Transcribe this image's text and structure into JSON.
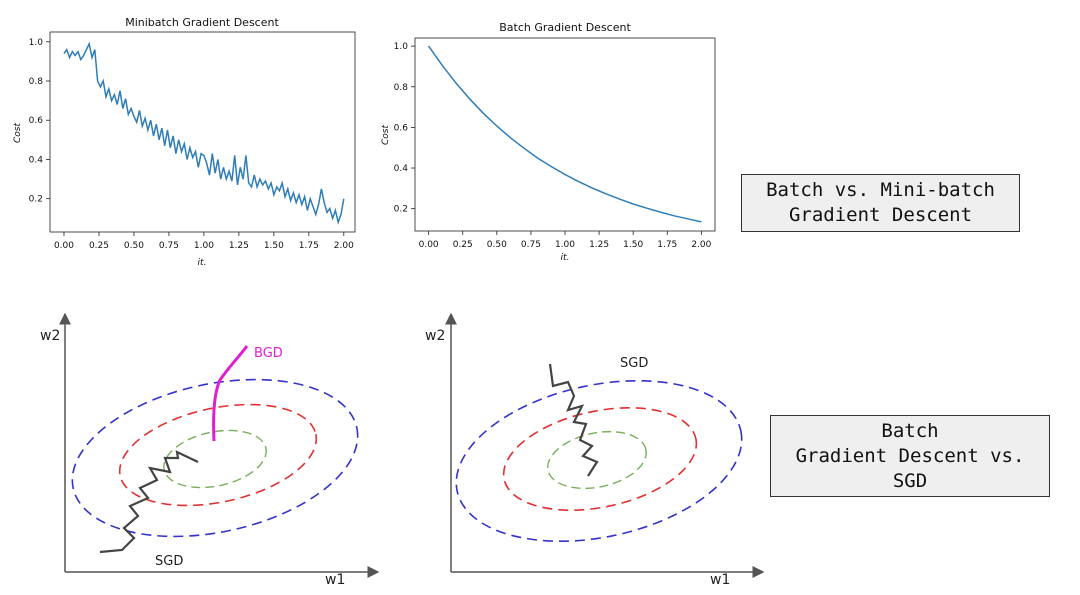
{
  "chart_data": [
    {
      "type": "line",
      "title": "Minibatch Gradient Descent",
      "xlabel": "it.",
      "ylabel": "Cost",
      "xlim": [
        -0.1,
        2.08
      ],
      "ylim": [
        0.03,
        1.05
      ],
      "xticks": [
        "0.00",
        "0.25",
        "0.50",
        "0.75",
        "1.00",
        "1.25",
        "1.50",
        "1.75",
        "2.00"
      ],
      "yticks": [
        "0.2",
        "0.4",
        "0.6",
        "0.8",
        "1.0"
      ],
      "line_color": "#2f7db8",
      "x": [
        0.0,
        0.02,
        0.04,
        0.06,
        0.08,
        0.1,
        0.12,
        0.14,
        0.16,
        0.18,
        0.2,
        0.22,
        0.24,
        0.26,
        0.28,
        0.3,
        0.32,
        0.34,
        0.36,
        0.38,
        0.4,
        0.42,
        0.44,
        0.46,
        0.48,
        0.5,
        0.52,
        0.54,
        0.56,
        0.58,
        0.6,
        0.62,
        0.64,
        0.66,
        0.68,
        0.7,
        0.72,
        0.74,
        0.76,
        0.78,
        0.8,
        0.82,
        0.84,
        0.86,
        0.88,
        0.9,
        0.92,
        0.94,
        0.96,
        0.98,
        1.0,
        1.02,
        1.04,
        1.06,
        1.08,
        1.1,
        1.12,
        1.14,
        1.16,
        1.18,
        1.2,
        1.22,
        1.24,
        1.26,
        1.28,
        1.3,
        1.32,
        1.34,
        1.36,
        1.38,
        1.4,
        1.42,
        1.44,
        1.46,
        1.48,
        1.5,
        1.52,
        1.54,
        1.56,
        1.58,
        1.6,
        1.62,
        1.64,
        1.66,
        1.68,
        1.7,
        1.72,
        1.74,
        1.76,
        1.78,
        1.8,
        1.82,
        1.84,
        1.86,
        1.88,
        1.9,
        1.92,
        1.94,
        1.96,
        1.98,
        2.0
      ],
      "y": [
        0.94,
        0.96,
        0.92,
        0.95,
        0.93,
        0.95,
        0.91,
        0.93,
        0.96,
        0.99,
        0.92,
        0.96,
        0.8,
        0.77,
        0.8,
        0.72,
        0.76,
        0.7,
        0.73,
        0.68,
        0.75,
        0.66,
        0.71,
        0.63,
        0.66,
        0.62,
        0.59,
        0.65,
        0.57,
        0.61,
        0.55,
        0.6,
        0.52,
        0.58,
        0.5,
        0.56,
        0.47,
        0.55,
        0.46,
        0.52,
        0.43,
        0.5,
        0.44,
        0.48,
        0.4,
        0.46,
        0.41,
        0.44,
        0.36,
        0.43,
        0.42,
        0.38,
        0.32,
        0.43,
        0.33,
        0.4,
        0.3,
        0.36,
        0.3,
        0.34,
        0.29,
        0.42,
        0.27,
        0.36,
        0.3,
        0.42,
        0.28,
        0.26,
        0.32,
        0.26,
        0.3,
        0.27,
        0.29,
        0.25,
        0.28,
        0.22,
        0.26,
        0.24,
        0.28,
        0.21,
        0.25,
        0.19,
        0.23,
        0.18,
        0.22,
        0.17,
        0.21,
        0.14,
        0.2,
        0.16,
        0.12,
        0.17,
        0.25,
        0.18,
        0.13,
        0.15,
        0.1,
        0.14,
        0.08,
        0.12,
        0.2
      ]
    },
    {
      "type": "line",
      "title": "Batch Gradient Descent",
      "xlabel": "it.",
      "ylabel": "Cost",
      "xlim": [
        -0.1,
        2.1
      ],
      "ylim": [
        0.09,
        1.04
      ],
      "xticks": [
        "0.00",
        "0.25",
        "0.50",
        "0.75",
        "1.00",
        "1.25",
        "1.50",
        "1.75",
        "2.00"
      ],
      "yticks": [
        "0.2",
        "0.4",
        "0.6",
        "0.8",
        "1.0"
      ],
      "line_color": "#2f7db8",
      "x": [
        0.0,
        0.1,
        0.2,
        0.3,
        0.4,
        0.5,
        0.6,
        0.7,
        0.8,
        0.9,
        1.0,
        1.1,
        1.2,
        1.3,
        1.4,
        1.5,
        1.6,
        1.7,
        1.8,
        1.9,
        2.0
      ],
      "y": [
        1.0,
        0.905,
        0.819,
        0.741,
        0.67,
        0.607,
        0.549,
        0.497,
        0.449,
        0.407,
        0.368,
        0.333,
        0.301,
        0.273,
        0.247,
        0.223,
        0.202,
        0.183,
        0.165,
        0.15,
        0.135
      ]
    }
  ],
  "diagram_left": {
    "y_axis_label": "w2",
    "x_axis_label": "w1",
    "bgd_label": "BGD",
    "sgd_label": "SGD",
    "colors": {
      "outer": "#3333cc",
      "middle": "#e03030",
      "inner": "#7aae5a",
      "bgd": "#e020d0",
      "sgd": "#444444"
    }
  },
  "diagram_right": {
    "y_axis_label": "w2",
    "x_axis_label": "w1",
    "sgd_label": "SGD"
  },
  "caption1": {
    "line1": "Batch vs. Mini-batch",
    "line2": "Gradient Descent"
  },
  "caption2": {
    "line1": "Batch",
    "line2": "Gradient Descent vs.",
    "line3": "SGD"
  }
}
